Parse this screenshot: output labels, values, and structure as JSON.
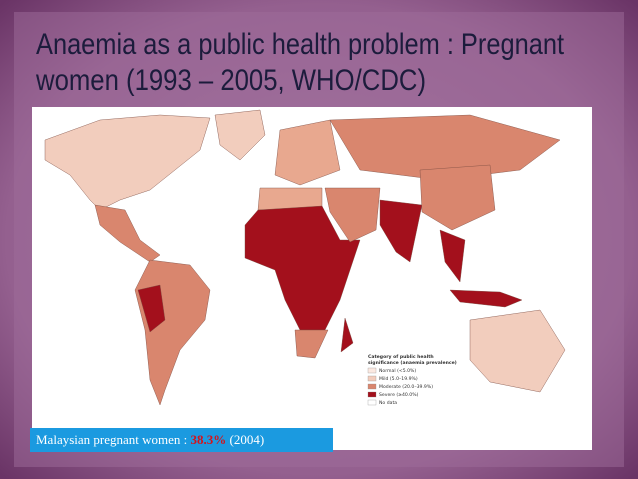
{
  "header": {
    "title": [
      "Anaemia as a public health problem : Pregnant",
      "women (1993 – 2005, WHO/CDC)"
    ]
  },
  "map": {
    "legend": {
      "title": [
        "Category of public health",
        "significance (anaemia prevalence)"
      ],
      "items": [
        "Normal (<5.0%)",
        "Mild (5.0–19.9%)",
        "Moderate (20.0–39.9%)",
        "Severe (≥40.0%)",
        "No data"
      ]
    }
  },
  "caption": {
    "prefix": "Malaysian pregnant women :",
    "highlight": "38.3%",
    "suffix": "(2004)"
  }
}
